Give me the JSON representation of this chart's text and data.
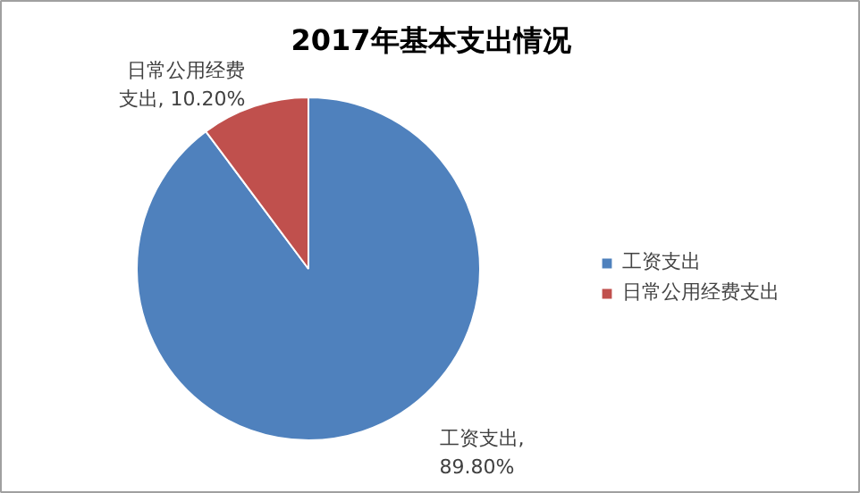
{
  "chart_data": {
    "type": "pie",
    "title": "2017年基本支出情况",
    "categories": [
      "工资支出",
      "日常公用经费支出"
    ],
    "values": [
      89.8,
      10.2
    ],
    "colors": [
      "#4f81bd",
      "#c0504d"
    ],
    "value_labels": [
      "工资支出, 89.80%",
      "日常公用经费支出, 10.20%"
    ],
    "legend": "right"
  }
}
